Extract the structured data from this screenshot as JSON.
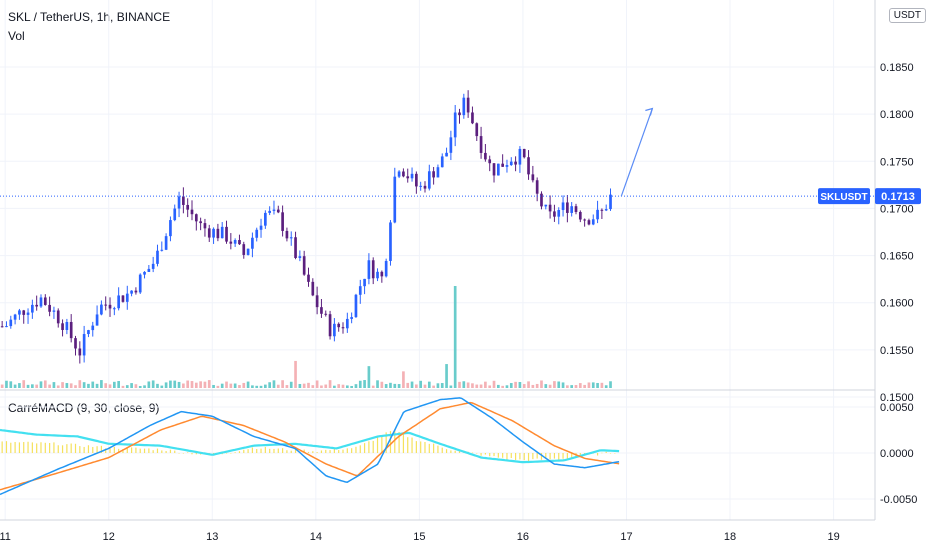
{
  "header": {
    "title": "SKL / TetherUS, 1h, BINANCE",
    "volume_label": "Vol",
    "macd_label": "CarréMACD (9, 30, close, 9)"
  },
  "currency_button": "USDT",
  "price_tag": {
    "symbol": "SKLUSDT",
    "value": "0.1713"
  },
  "colors": {
    "up": "#2962ff",
    "down": "#5b1f7e",
    "vol_up": "#4fc3c2",
    "vol_down": "#f2a3a8",
    "macd": "#2196f3",
    "signal": "#ff8a30",
    "trend": "#43e0f0",
    "hist": "#f5e15c",
    "tag": "#2962ff"
  },
  "chart_data": [
    {
      "type": "candlestick",
      "title": "SKL / TetherUS, 1h, BINANCE",
      "y_ticks": [
        "0.1850",
        "0.1800",
        "0.1750",
        "0.1700",
        "0.1650",
        "0.1600",
        "0.1550",
        "0.1500"
      ],
      "ylim": [
        0.1495,
        0.188
      ],
      "x_ticks": [
        "11",
        "12",
        "13",
        "14",
        "15",
        "16",
        "17",
        "18",
        "19"
      ],
      "xlim_days": [
        10.95,
        19.4
      ],
      "last_price": 0.1713,
      "projection": [
        [
          16.95,
          0.1713
        ],
        [
          17.25,
          0.1806
        ]
      ],
      "anchors": [
        [
          11.0,
          0.1575
        ],
        [
          11.2,
          0.1595
        ],
        [
          11.35,
          0.1605
        ],
        [
          11.55,
          0.158
        ],
        [
          11.72,
          0.1548
        ],
        [
          11.9,
          0.1595
        ],
        [
          12.2,
          0.161
        ],
        [
          12.45,
          0.1645
        ],
        [
          12.6,
          0.169
        ],
        [
          12.68,
          0.171
        ],
        [
          12.9,
          0.168
        ],
        [
          13.15,
          0.167
        ],
        [
          13.3,
          0.165
        ],
        [
          13.5,
          0.1695
        ],
        [
          13.65,
          0.169
        ],
        [
          13.85,
          0.164
        ],
        [
          13.95,
          0.161
        ],
        [
          14.15,
          0.157
        ],
        [
          14.3,
          0.158
        ],
        [
          14.5,
          0.164
        ],
        [
          14.65,
          0.1625
        ],
        [
          14.78,
          0.175
        ],
        [
          15.0,
          0.172
        ],
        [
          15.1,
          0.1735
        ],
        [
          15.25,
          0.1755
        ],
        [
          15.35,
          0.1795
        ],
        [
          15.45,
          0.1815
        ],
        [
          15.55,
          0.178
        ],
        [
          15.7,
          0.174
        ],
        [
          15.9,
          0.1755
        ],
        [
          16.0,
          0.1755
        ],
        [
          16.1,
          0.172
        ],
        [
          16.25,
          0.169
        ],
        [
          16.45,
          0.1705
        ],
        [
          16.6,
          0.169
        ],
        [
          16.75,
          0.1693
        ],
        [
          16.85,
          0.1713
        ]
      ],
      "volume": {
        "base": 0.00048,
        "peak_at": 15.35,
        "peak_value": 0.0098,
        "spikes": [
          [
            13.8,
            0.0026
          ],
          [
            14.5,
            0.0021
          ],
          [
            15.25,
            0.0023
          ],
          [
            14.85,
            0.0016
          ]
        ]
      },
      "macd_panel": {
        "y_ticks": [
          "0.0050",
          "0.0000",
          "-0.0050"
        ],
        "ylim": [
          -0.0065,
          0.0065
        ],
        "macd": [
          [
            10.95,
            -0.0045
          ],
          [
            11.5,
            -0.0018
          ],
          [
            12.0,
            0.0005
          ],
          [
            12.4,
            0.003
          ],
          [
            12.7,
            0.0045
          ],
          [
            13.0,
            0.004
          ],
          [
            13.4,
            0.0018
          ],
          [
            13.8,
            0.0005
          ],
          [
            14.1,
            -0.0025
          ],
          [
            14.3,
            -0.0032
          ],
          [
            14.6,
            -0.0012
          ],
          [
            14.85,
            0.0045
          ],
          [
            15.2,
            0.0058
          ],
          [
            15.4,
            0.006
          ],
          [
            15.7,
            0.0038
          ],
          [
            16.0,
            0.0012
          ],
          [
            16.3,
            -0.0012
          ],
          [
            16.6,
            -0.0016
          ],
          [
            16.95,
            -0.0009
          ]
        ],
        "signal": [
          [
            10.95,
            -0.004
          ],
          [
            11.5,
            -0.0022
          ],
          [
            12.0,
            -0.0005
          ],
          [
            12.5,
            0.0025
          ],
          [
            12.9,
            0.004
          ],
          [
            13.3,
            0.003
          ],
          [
            13.7,
            0.0012
          ],
          [
            14.1,
            -0.0012
          ],
          [
            14.4,
            -0.0025
          ],
          [
            14.8,
            0.0018
          ],
          [
            15.2,
            0.0048
          ],
          [
            15.5,
            0.0055
          ],
          [
            15.9,
            0.0035
          ],
          [
            16.3,
            0.0008
          ],
          [
            16.6,
            -0.0006
          ],
          [
            16.95,
            -0.0012
          ]
        ],
        "trend": [
          [
            10.95,
            0.0025
          ],
          [
            11.3,
            0.002
          ],
          [
            11.7,
            0.0018
          ],
          [
            12.0,
            0.001
          ],
          [
            12.5,
            0.0008
          ],
          [
            13.0,
            -0.0002
          ],
          [
            13.4,
            0.0008
          ],
          [
            13.8,
            0.001
          ],
          [
            14.2,
            0.0005
          ],
          [
            14.6,
            0.0018
          ],
          [
            14.9,
            0.0022
          ],
          [
            15.2,
            0.001
          ],
          [
            15.6,
            -0.0005
          ],
          [
            16.0,
            -0.001
          ],
          [
            16.4,
            -0.0008
          ],
          [
            16.75,
            0.0003
          ],
          [
            16.95,
            0.0002
          ]
        ],
        "hist": [
          [
            10.95,
            0.0012
          ],
          [
            11.5,
            0.001
          ],
          [
            12.0,
            0.0006
          ],
          [
            12.5,
            0.0004
          ],
          [
            13.0,
            -0.0003
          ],
          [
            13.4,
            0.0006
          ],
          [
            14.0,
            0.0002
          ],
          [
            14.4,
            0.0006
          ],
          [
            14.75,
            0.0025
          ],
          [
            14.95,
            0.0015
          ],
          [
            15.3,
            0.0004
          ],
          [
            15.7,
            -0.0004
          ],
          [
            16.0,
            -0.0008
          ],
          [
            16.4,
            -0.0006
          ],
          [
            16.95,
            0.0002
          ]
        ]
      }
    }
  ]
}
